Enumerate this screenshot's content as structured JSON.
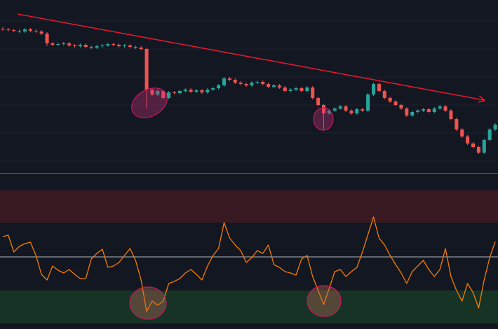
{
  "chart_data": [
    {
      "type": "candlestick",
      "open": [
        207,
        206,
        205,
        204,
        203,
        206,
        204,
        203,
        200,
        186,
        184,
        185,
        186,
        183,
        182,
        184,
        181,
        180,
        182,
        183,
        185,
        184,
        182,
        183,
        181,
        180,
        178,
        120,
        113,
        118,
        108,
        116,
        115,
        118,
        120,
        117,
        119,
        116,
        120,
        122,
        126,
        136,
        134,
        130,
        128,
        126,
        130,
        131,
        128,
        124,
        126,
        123,
        118,
        120,
        122,
        118,
        123,
        108,
        98,
        86,
        90,
        93,
        96,
        90,
        86,
        92,
        90,
        113,
        128,
        118,
        108,
        103,
        98,
        93,
        83,
        88,
        90,
        92,
        88,
        93,
        96,
        90,
        78,
        63,
        53,
        43,
        38,
        30,
        48,
        63
      ],
      "high": [
        209,
        208,
        207,
        206,
        208,
        208,
        206,
        205,
        202,
        188,
        187,
        188,
        188,
        185,
        186,
        186,
        183,
        184,
        185,
        187,
        187,
        186,
        185,
        185,
        183,
        182,
        180,
        122,
        120,
        120,
        118,
        118,
        120,
        122,
        122,
        121,
        121,
        122,
        124,
        128,
        138,
        138,
        136,
        132,
        130,
        132,
        133,
        133,
        130,
        128,
        128,
        125,
        122,
        124,
        124,
        125,
        125,
        110,
        100,
        92,
        95,
        98,
        98,
        92,
        94,
        94,
        115,
        130,
        130,
        120,
        110,
        105,
        100,
        95,
        90,
        92,
        94,
        94,
        95,
        98,
        98,
        92,
        80,
        65,
        55,
        45,
        40,
        50,
        65,
        72
      ],
      "low": [
        204,
        203,
        202,
        201,
        201,
        202,
        201,
        198,
        182,
        182,
        182,
        183,
        181,
        180,
        180,
        179,
        178,
        178,
        180,
        181,
        182,
        180,
        180,
        179,
        178,
        176,
        93,
        111,
        111,
        106,
        106,
        113,
        113,
        116,
        115,
        115,
        114,
        114,
        118,
        120,
        124,
        132,
        128,
        126,
        124,
        124,
        128,
        126,
        122,
        122,
        121,
        116,
        116,
        118,
        116,
        116,
        106,
        96,
        63,
        84,
        88,
        91,
        88,
        84,
        84,
        88,
        88,
        111,
        116,
        106,
        101,
        96,
        91,
        81,
        81,
        86,
        88,
        86,
        86,
        91,
        88,
        76,
        61,
        51,
        41,
        36,
        28,
        28,
        46,
        61
      ],
      "close": [
        206,
        205,
        204,
        203,
        206,
        204,
        203,
        200,
        186,
        184,
        185,
        186,
        183,
        182,
        184,
        181,
        180,
        182,
        183,
        185,
        184,
        182,
        183,
        181,
        180,
        178,
        120,
        113,
        118,
        108,
        116,
        115,
        118,
        120,
        117,
        119,
        116,
        120,
        122,
        126,
        136,
        134,
        130,
        128,
        126,
        130,
        131,
        128,
        124,
        126,
        123,
        118,
        120,
        122,
        118,
        123,
        108,
        98,
        86,
        90,
        93,
        96,
        90,
        86,
        92,
        90,
        113,
        128,
        118,
        108,
        103,
        98,
        93,
        83,
        88,
        90,
        92,
        88,
        93,
        96,
        90,
        78,
        63,
        53,
        43,
        38,
        30,
        48,
        63,
        70
      ],
      "ylim": [
        0,
        248
      ],
      "up_color": "#26a69a",
      "down_color": "#ef5350"
    },
    {
      "type": "line",
      "values": [
        132,
        134,
        110,
        118,
        122,
        124,
        105,
        78,
        70,
        90,
        84,
        80,
        85,
        78,
        72,
        72,
        100,
        108,
        114,
        88,
        90,
        95,
        105,
        115,
        98,
        70,
        25,
        40,
        34,
        40,
        65,
        68,
        72,
        80,
        85,
        78,
        70,
        90,
        105,
        115,
        152,
        130,
        120,
        112,
        95,
        102,
        112,
        108,
        120,
        92,
        88,
        82,
        80,
        77,
        100,
        105,
        75,
        55,
        35,
        58,
        82,
        85,
        75,
        82,
        88,
        110,
        135,
        160,
        130,
        120,
        105,
        92,
        80,
        65,
        82,
        90,
        98,
        85,
        75,
        85,
        115,
        75,
        55,
        40,
        65,
        52,
        30,
        70,
        102,
        125
      ],
      "ylim": [
        0,
        220
      ],
      "color": "#f57c00",
      "bands": [
        {
          "lo": 152,
          "hi": 198,
          "color": "#3a1a22"
        },
        {
          "lo": 8,
          "hi": 55,
          "color": "#173325"
        }
      ],
      "midline": 103
    }
  ]
}
